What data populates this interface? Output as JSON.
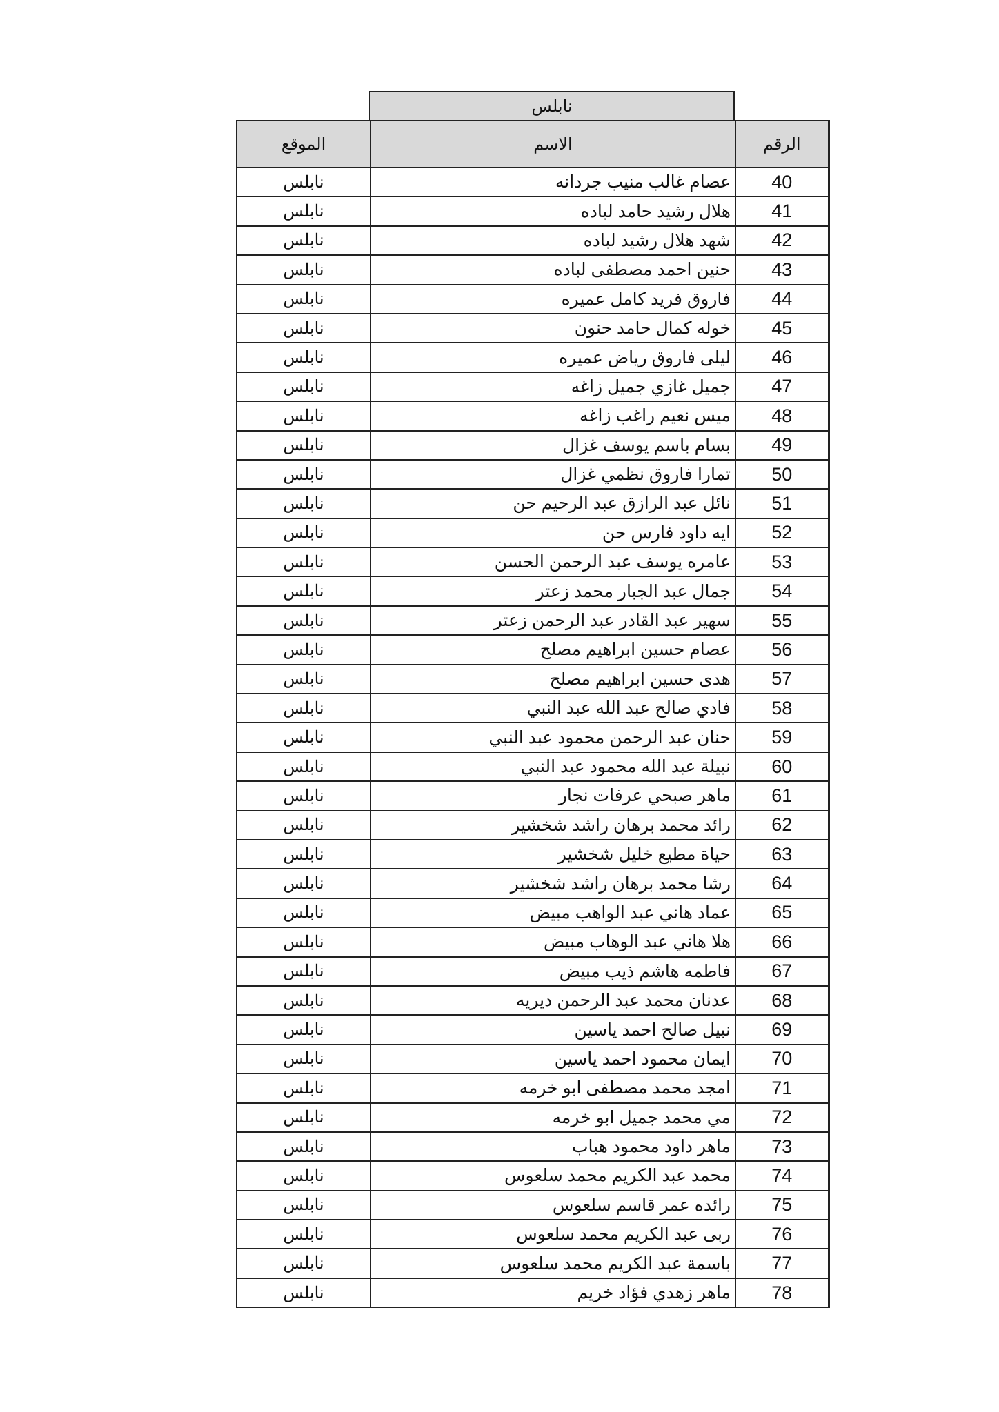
{
  "header": {
    "city": "نابلس"
  },
  "columns": {
    "number": "الرقم",
    "name": "الاسم",
    "location": "الموقع"
  },
  "rows": [
    {
      "number": "40",
      "name": "عصام غالب منيب جردانه",
      "location": "نابلس"
    },
    {
      "number": "41",
      "name": "هلال رشيد حامد لباده",
      "location": "نابلس"
    },
    {
      "number": "42",
      "name": "شهد هلال رشيد لباده",
      "location": "نابلس"
    },
    {
      "number": "43",
      "name": "حنين احمد مصطفى لباده",
      "location": "نابلس"
    },
    {
      "number": "44",
      "name": "فاروق فريد كامل عميره",
      "location": "نابلس"
    },
    {
      "number": "45",
      "name": "خوله كمال حامد حنون",
      "location": "نابلس"
    },
    {
      "number": "46",
      "name": "ليلى فاروق رياض عميره",
      "location": "نابلس"
    },
    {
      "number": "47",
      "name": "جميل غازي جميل زاغه",
      "location": "نابلس"
    },
    {
      "number": "48",
      "name": "ميس نعيم راغب زاغه",
      "location": "نابلس"
    },
    {
      "number": "49",
      "name": "بسام باسم يوسف غزال",
      "location": "نابلس"
    },
    {
      "number": "50",
      "name": "تمارا فاروق نظمي غزال",
      "location": "نابلس"
    },
    {
      "number": "51",
      "name": "نائل عبد الرازق عبد الرحيم حن",
      "location": "نابلس"
    },
    {
      "number": "52",
      "name": "ايه داود فارس حن",
      "location": "نابلس"
    },
    {
      "number": "53",
      "name": "عامره يوسف عبد الرحمن الحسن",
      "location": "نابلس"
    },
    {
      "number": "54",
      "name": "جمال عبد الجبار محمد زعتر",
      "location": "نابلس"
    },
    {
      "number": "55",
      "name": "سهير عبد القادر عبد الرحمن زعتر",
      "location": "نابلس"
    },
    {
      "number": "56",
      "name": "عصام حسين ابراهيم مصلح",
      "location": "نابلس"
    },
    {
      "number": "57",
      "name": "هدى حسين ابراهيم مصلح",
      "location": "نابلس"
    },
    {
      "number": "58",
      "name": "فادي صالح عبد الله عبد النبي",
      "location": "نابلس"
    },
    {
      "number": "59",
      "name": "حنان عبد الرحمن محمود عبد النبي",
      "location": "نابلس"
    },
    {
      "number": "60",
      "name": "نبيلة عبد الله محمود عبد النبي",
      "location": "نابلس"
    },
    {
      "number": "61",
      "name": "ماهر صبحي عرفات نجار",
      "location": "نابلس"
    },
    {
      "number": "62",
      "name": "رائد محمد برهان راشد شخشير",
      "location": "نابلس"
    },
    {
      "number": "63",
      "name": "حياة مطيع خليل شخشير",
      "location": "نابلس"
    },
    {
      "number": "64",
      "name": "رشا محمد برهان راشد شخشير",
      "location": "نابلس"
    },
    {
      "number": "65",
      "name": "عماد هاني عبد الواهب مبيض",
      "location": "نابلس"
    },
    {
      "number": "66",
      "name": "هلا هاني عبد الوهاب مبيض",
      "location": "نابلس"
    },
    {
      "number": "67",
      "name": "فاطمه هاشم ذيب مبيض",
      "location": "نابلس"
    },
    {
      "number": "68",
      "name": "عدنان محمد عبد الرحمن ديريه",
      "location": "نابلس"
    },
    {
      "number": "69",
      "name": "نبيل صالح احمد ياسين",
      "location": "نابلس"
    },
    {
      "number": "70",
      "name": "ايمان محمود احمد ياسين",
      "location": "نابلس"
    },
    {
      "number": "71",
      "name": "امجد محمد مصطفى ابو خرمه",
      "location": "نابلس"
    },
    {
      "number": "72",
      "name": "مي محمد جميل ابو خرمه",
      "location": "نابلس"
    },
    {
      "number": "73",
      "name": "ماهر داود محمود هباب",
      "location": "نابلس"
    },
    {
      "number": "74",
      "name": "محمد عبد الكريم محمد سلعوس",
      "location": "نابلس"
    },
    {
      "number": "75",
      "name": "رائده عمر قاسم سلعوس",
      "location": "نابلس"
    },
    {
      "number": "76",
      "name": "ربى عبد الكريم محمد سلعوس",
      "location": "نابلس"
    },
    {
      "number": "77",
      "name": "باسمة عبد الكريم محمد سلعوس",
      "location": "نابلس"
    },
    {
      "number": "78",
      "name": "ماهر زهدي فؤاد خريم",
      "location": "نابلس"
    }
  ]
}
